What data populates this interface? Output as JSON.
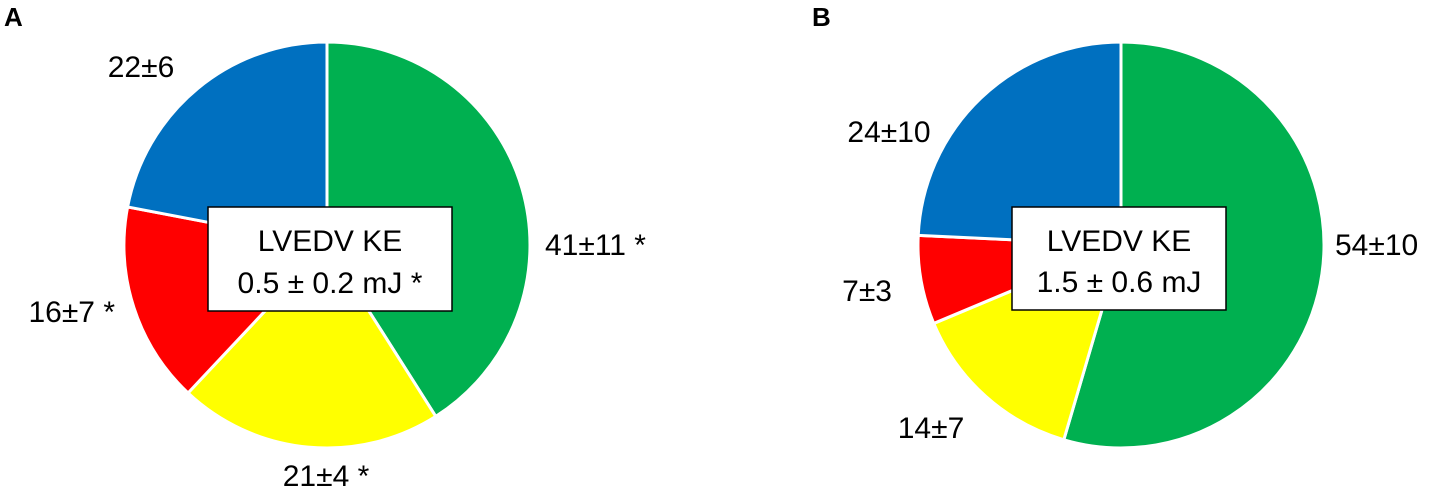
{
  "chart_data": [
    {
      "type": "pie",
      "panel": "A",
      "slices": [
        {
          "value": 41,
          "label": "41±11 *",
          "color": "#00b050"
        },
        {
          "value": 21,
          "label": "21±4 *",
          "color": "#ffff00"
        },
        {
          "value": 16,
          "label": "16±7 *",
          "color": "#ff0000"
        },
        {
          "value": 22,
          "label": "22±6",
          "color": "#0070c0"
        }
      ],
      "center_box": {
        "line1": "LVEDV KE",
        "line2": "0.5 ± 0.2 mJ *"
      }
    },
    {
      "type": "pie",
      "panel": "B",
      "slices": [
        {
          "value": 54,
          "label": "54±10",
          "color": "#00b050"
        },
        {
          "value": 14,
          "label": "14±7",
          "color": "#ffff00"
        },
        {
          "value": 7,
          "label": "7±3",
          "color": "#ff0000"
        },
        {
          "value": 24,
          "label": "24±10",
          "color": "#0070c0"
        }
      ],
      "center_box": {
        "line1": "LVEDV KE",
        "line2": "1.5 ± 0.6 mJ"
      }
    }
  ]
}
